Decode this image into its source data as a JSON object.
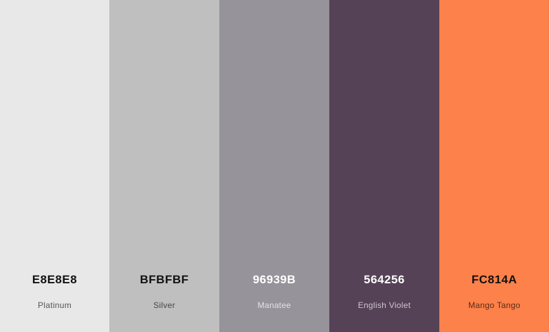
{
  "swatches": [
    {
      "hex": "E8E8E8",
      "name": "Platinum",
      "color": "#E8E8E8",
      "hex_text_color": "#111111",
      "name_text_color": "#555555"
    },
    {
      "hex": "BFBFBF",
      "name": "Silver",
      "color": "#BFBFBF",
      "hex_text_color": "#111111",
      "name_text_color": "#444444"
    },
    {
      "hex": "96939B",
      "name": "Manatee",
      "color": "#96939B",
      "hex_text_color": "#FFFFFF",
      "name_text_color": "#E4E3E6"
    },
    {
      "hex": "564256",
      "name": "English Violet",
      "color": "#564256",
      "hex_text_color": "#FFFFFF",
      "name_text_color": "#CFC6CF"
    },
    {
      "hex": "FC814A",
      "name": "Mango Tango",
      "color": "#FC814A",
      "hex_text_color": "#111111",
      "name_text_color": "#5A2A14"
    }
  ]
}
